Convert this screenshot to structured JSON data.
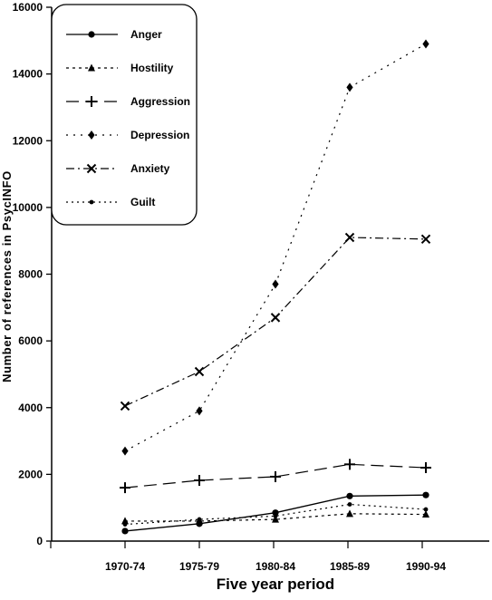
{
  "chart_data": {
    "type": "line",
    "xlabel": "Five year period",
    "ylabel": "Number of references in PsycINFO",
    "categories": [
      "1970-74",
      "1975-79",
      "1980-84",
      "1985-89",
      "1990-94"
    ],
    "ylim": [
      0,
      16000
    ],
    "yticks": [
      0,
      2000,
      4000,
      6000,
      8000,
      10000,
      12000,
      14000,
      16000
    ],
    "grid": false,
    "legend_position": "top-left",
    "series": [
      {
        "name": "Anger",
        "marker": "dot",
        "dash": "solid",
        "values": [
          300,
          520,
          850,
          1350,
          1380
        ]
      },
      {
        "name": "Hostility",
        "marker": "triangle",
        "dash": "dotted",
        "values": [
          600,
          600,
          650,
          820,
          800
        ]
      },
      {
        "name": "Aggression",
        "marker": "plus",
        "dash": "long-dash",
        "values": [
          1600,
          1820,
          1930,
          2300,
          2200
        ]
      },
      {
        "name": "Depression",
        "marker": "diamond",
        "dash": "sparse-dot",
        "values": [
          2700,
          3900,
          7700,
          13600,
          14900
        ]
      },
      {
        "name": "Anxiety",
        "marker": "cross",
        "dash": "dash-dot",
        "values": [
          4050,
          5080,
          6700,
          9100,
          9050
        ]
      },
      {
        "name": "Guilt",
        "marker": "small-dot",
        "dash": "dense-dot",
        "values": [
          500,
          650,
          750,
          1100,
          950
        ]
      }
    ]
  }
}
